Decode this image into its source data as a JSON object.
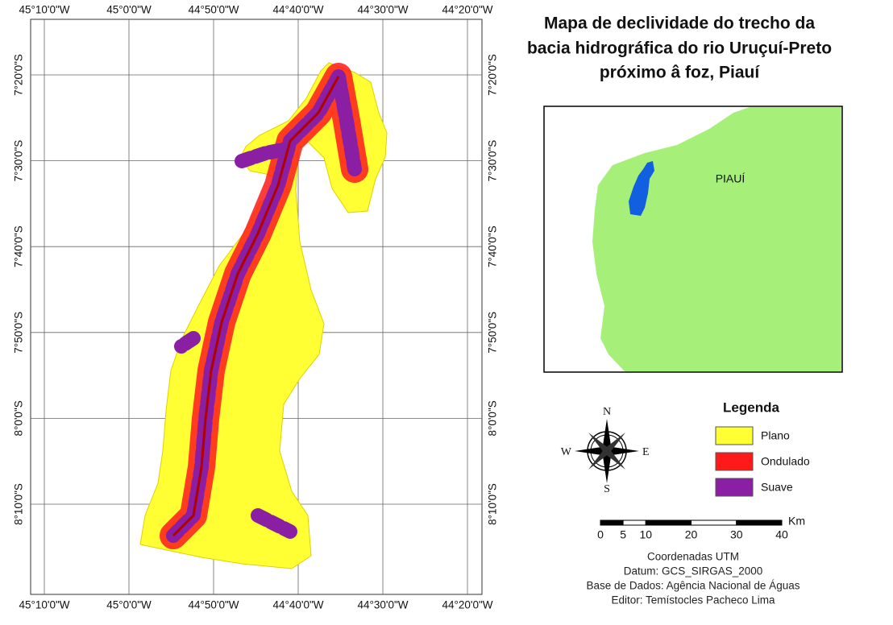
{
  "title": [
    "Mapa de declividade do trecho da",
    "bacia hidrográfica do rio Uruçuí-Preto",
    "próximo â foz, Piauí"
  ],
  "map": {
    "longitude_labels": [
      "45°10'0\"W",
      "45°0'0\"W",
      "44°50'0\"W",
      "44°40'0\"W",
      "44°30'0\"W",
      "44°20'0\"W"
    ],
    "latitude_labels": [
      "7°20'0\"S",
      "7°30'0\"S",
      "7°40'0\"S",
      "7°50'0\"S",
      "8°0'0\"S",
      "8°10'0\"S"
    ]
  },
  "inset": {
    "label": "PIAUÍ"
  },
  "compass": {
    "n": "N",
    "e": "E",
    "s": "S",
    "w": "W"
  },
  "legend": {
    "title": "Legenda",
    "items": [
      {
        "label": "Plano",
        "color": "#ffff33"
      },
      {
        "label": "Ondulado",
        "color": "#ff1a1a"
      },
      {
        "label": "Suave",
        "color": "#8a1fa3"
      }
    ]
  },
  "scale_bar": {
    "unit": "Km",
    "ticks": [
      0,
      5,
      10,
      20,
      30,
      40
    ]
  },
  "credits": [
    "Coordenadas UTM",
    "Datum: GCS_SIRGAS_2000",
    "Base de Dados: Agência Nacional de Águas",
    "Editor: Temístocles Pacheco Lima"
  ]
}
